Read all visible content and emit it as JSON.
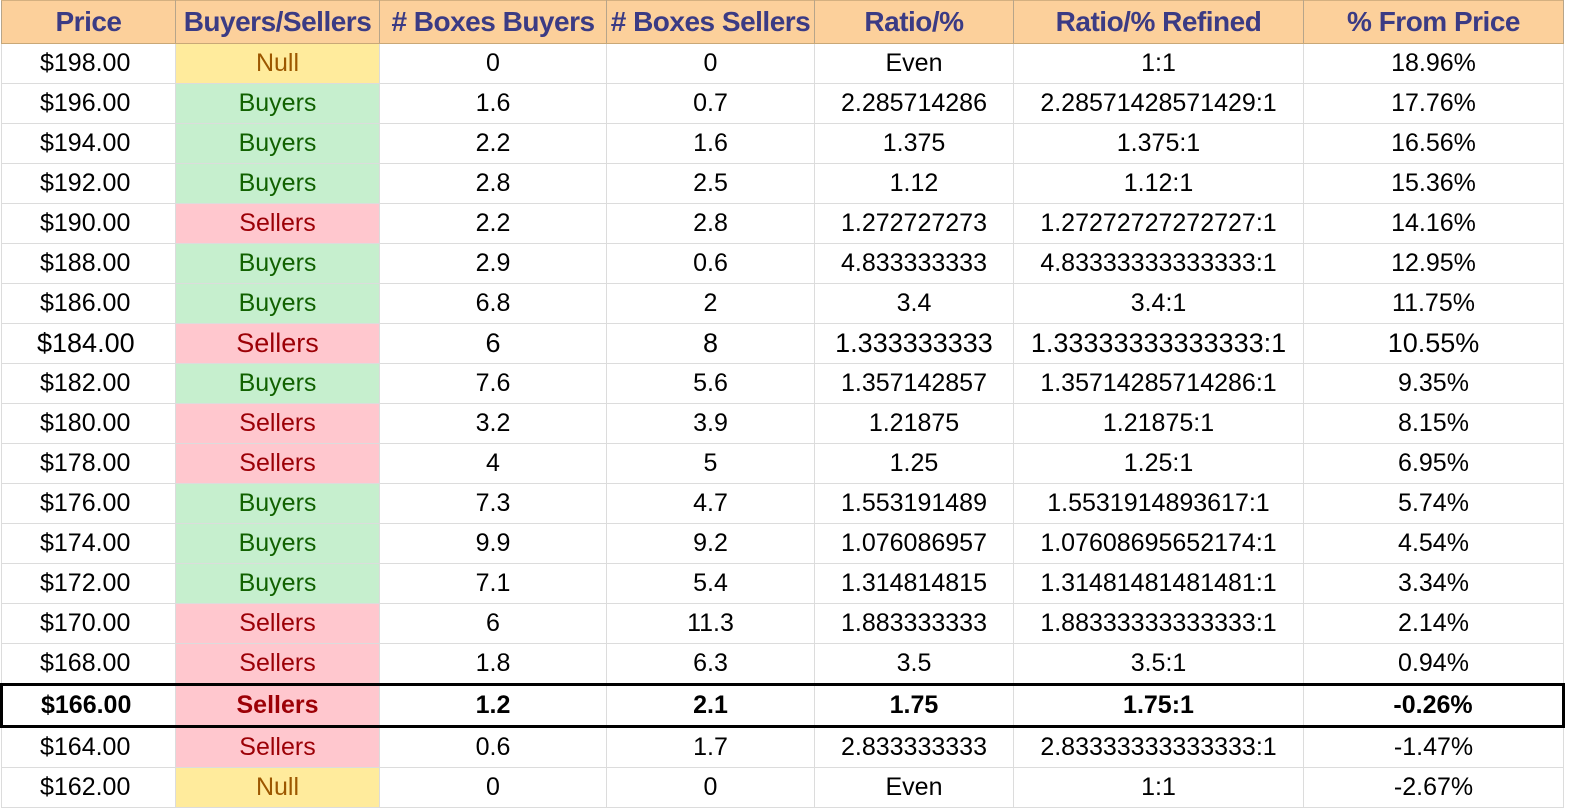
{
  "columns": [
    "Price",
    "Buyers/Sellers",
    "# Boxes Buyers",
    "# Boxes Sellers",
    "Ratio/%",
    "Ratio/% Refined",
    "% From Price"
  ],
  "current_price_row": "$166.00",
  "colors": {
    "header_bg": "#fcd09b",
    "header_text": "#3b3b84",
    "buyers_bg": "#c6efce",
    "buyers_text": "#116100",
    "sellers_bg": "#ffc7ce",
    "sellers_text": "#9c0006",
    "null_bg": "#ffeb9c",
    "null_text": "#9c5700"
  },
  "rows": [
    {
      "price": "$198.00",
      "side": "Null",
      "buyers": "0",
      "sellers": "0",
      "ratio": "Even",
      "refined": "1:1",
      "pct": "18.96%"
    },
    {
      "price": "$196.00",
      "side": "Buyers",
      "buyers": "1.6",
      "sellers": "0.7",
      "ratio": "2.285714286",
      "refined": "2.28571428571429:1",
      "pct": "17.76%"
    },
    {
      "price": "$194.00",
      "side": "Buyers",
      "buyers": "2.2",
      "sellers": "1.6",
      "ratio": "1.375",
      "refined": "1.375:1",
      "pct": "16.56%"
    },
    {
      "price": "$192.00",
      "side": "Buyers",
      "buyers": "2.8",
      "sellers": "2.5",
      "ratio": "1.12",
      "refined": "1.12:1",
      "pct": "15.36%"
    },
    {
      "price": "$190.00",
      "side": "Sellers",
      "buyers": "2.2",
      "sellers": "2.8",
      "ratio": "1.272727273",
      "refined": "1.27272727272727:1",
      "pct": "14.16%"
    },
    {
      "price": "$188.00",
      "side": "Buyers",
      "buyers": "2.9",
      "sellers": "0.6",
      "ratio": "4.833333333",
      "refined": "4.83333333333333:1",
      "pct": "12.95%"
    },
    {
      "price": "$186.00",
      "side": "Buyers",
      "buyers": "6.8",
      "sellers": "2",
      "ratio": "3.4",
      "refined": "3.4:1",
      "pct": "11.75%"
    },
    {
      "price": "$184.00",
      "side": "Sellers",
      "buyers": "6",
      "sellers": "8",
      "ratio": "1.333333333",
      "refined": "1.33333333333333:1",
      "pct": "10.55%"
    },
    {
      "price": "$182.00",
      "side": "Buyers",
      "buyers": "7.6",
      "sellers": "5.6",
      "ratio": "1.357142857",
      "refined": "1.35714285714286:1",
      "pct": "9.35%"
    },
    {
      "price": "$180.00",
      "side": "Sellers",
      "buyers": "3.2",
      "sellers": "3.9",
      "ratio": "1.21875",
      "refined": "1.21875:1",
      "pct": "8.15%"
    },
    {
      "price": "$178.00",
      "side": "Sellers",
      "buyers": "4",
      "sellers": "5",
      "ratio": "1.25",
      "refined": "1.25:1",
      "pct": "6.95%"
    },
    {
      "price": "$176.00",
      "side": "Buyers",
      "buyers": "7.3",
      "sellers": "4.7",
      "ratio": "1.553191489",
      "refined": "1.5531914893617:1",
      "pct": "5.74%"
    },
    {
      "price": "$174.00",
      "side": "Buyers",
      "buyers": "9.9",
      "sellers": "9.2",
      "ratio": "1.076086957",
      "refined": "1.07608695652174:1",
      "pct": "4.54%"
    },
    {
      "price": "$172.00",
      "side": "Buyers",
      "buyers": "7.1",
      "sellers": "5.4",
      "ratio": "1.314814815",
      "refined": "1.31481481481481:1",
      "pct": "3.34%"
    },
    {
      "price": "$170.00",
      "side": "Sellers",
      "buyers": "6",
      "sellers": "11.3",
      "ratio": "1.883333333",
      "refined": "1.88333333333333:1",
      "pct": "2.14%"
    },
    {
      "price": "$168.00",
      "side": "Sellers",
      "buyers": "1.8",
      "sellers": "6.3",
      "ratio": "3.5",
      "refined": "3.5:1",
      "pct": "0.94%"
    },
    {
      "price": "$166.00",
      "side": "Sellers",
      "buyers": "1.2",
      "sellers": "2.1",
      "ratio": "1.75",
      "refined": "1.75:1",
      "pct": "-0.26%"
    },
    {
      "price": "$164.00",
      "side": "Sellers",
      "buyers": "0.6",
      "sellers": "1.7",
      "ratio": "2.833333333",
      "refined": "2.83333333333333:1",
      "pct": "-1.47%"
    },
    {
      "price": "$162.00",
      "side": "Null",
      "buyers": "0",
      "sellers": "0",
      "ratio": "Even",
      "refined": "1:1",
      "pct": "-2.67%"
    }
  ]
}
